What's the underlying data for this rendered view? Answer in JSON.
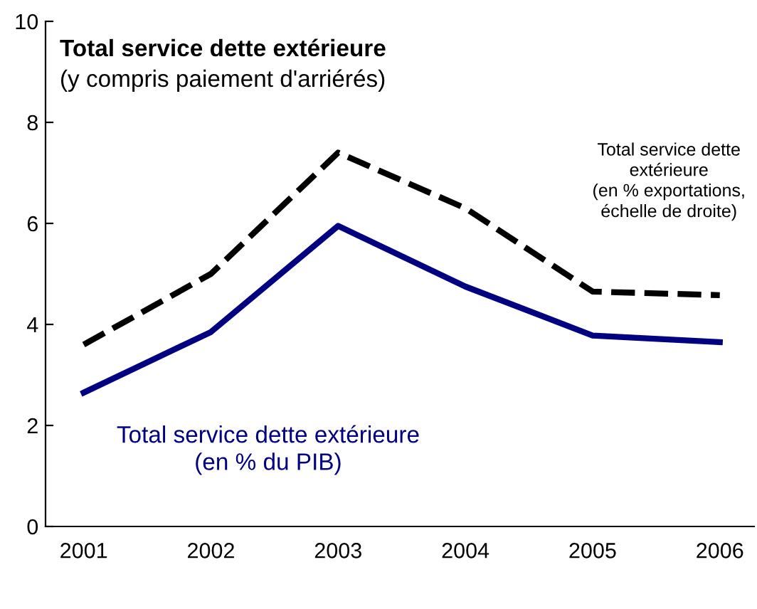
{
  "chart_data": {
    "type": "line",
    "title": "Total service dette extérieure",
    "subtitle": "(y compris paiement d'arriérés)",
    "categories": [
      "2001",
      "2002",
      "2003",
      "2004",
      "2005",
      "2006"
    ],
    "series": [
      {
        "name": "Total service dette extérieure\n(en % du PIB)",
        "color": "#000080",
        "values": [
          2.65,
          3.85,
          5.95,
          4.75,
          3.78,
          3.65
        ],
        "line_style": "solid"
      },
      {
        "name": "Total service dette\nextérieure\n(en % exportations,\néchelle de droite)",
        "color": "#000000",
        "values": [
          3.6,
          5.0,
          7.4,
          6.3,
          4.65,
          4.58
        ],
        "line_style": "dashed"
      }
    ],
    "ylim": [
      0,
      10
    ],
    "yticks": [
      0,
      2,
      4,
      6,
      8,
      10
    ],
    "grid": false,
    "legend": false,
    "marker": "none"
  }
}
